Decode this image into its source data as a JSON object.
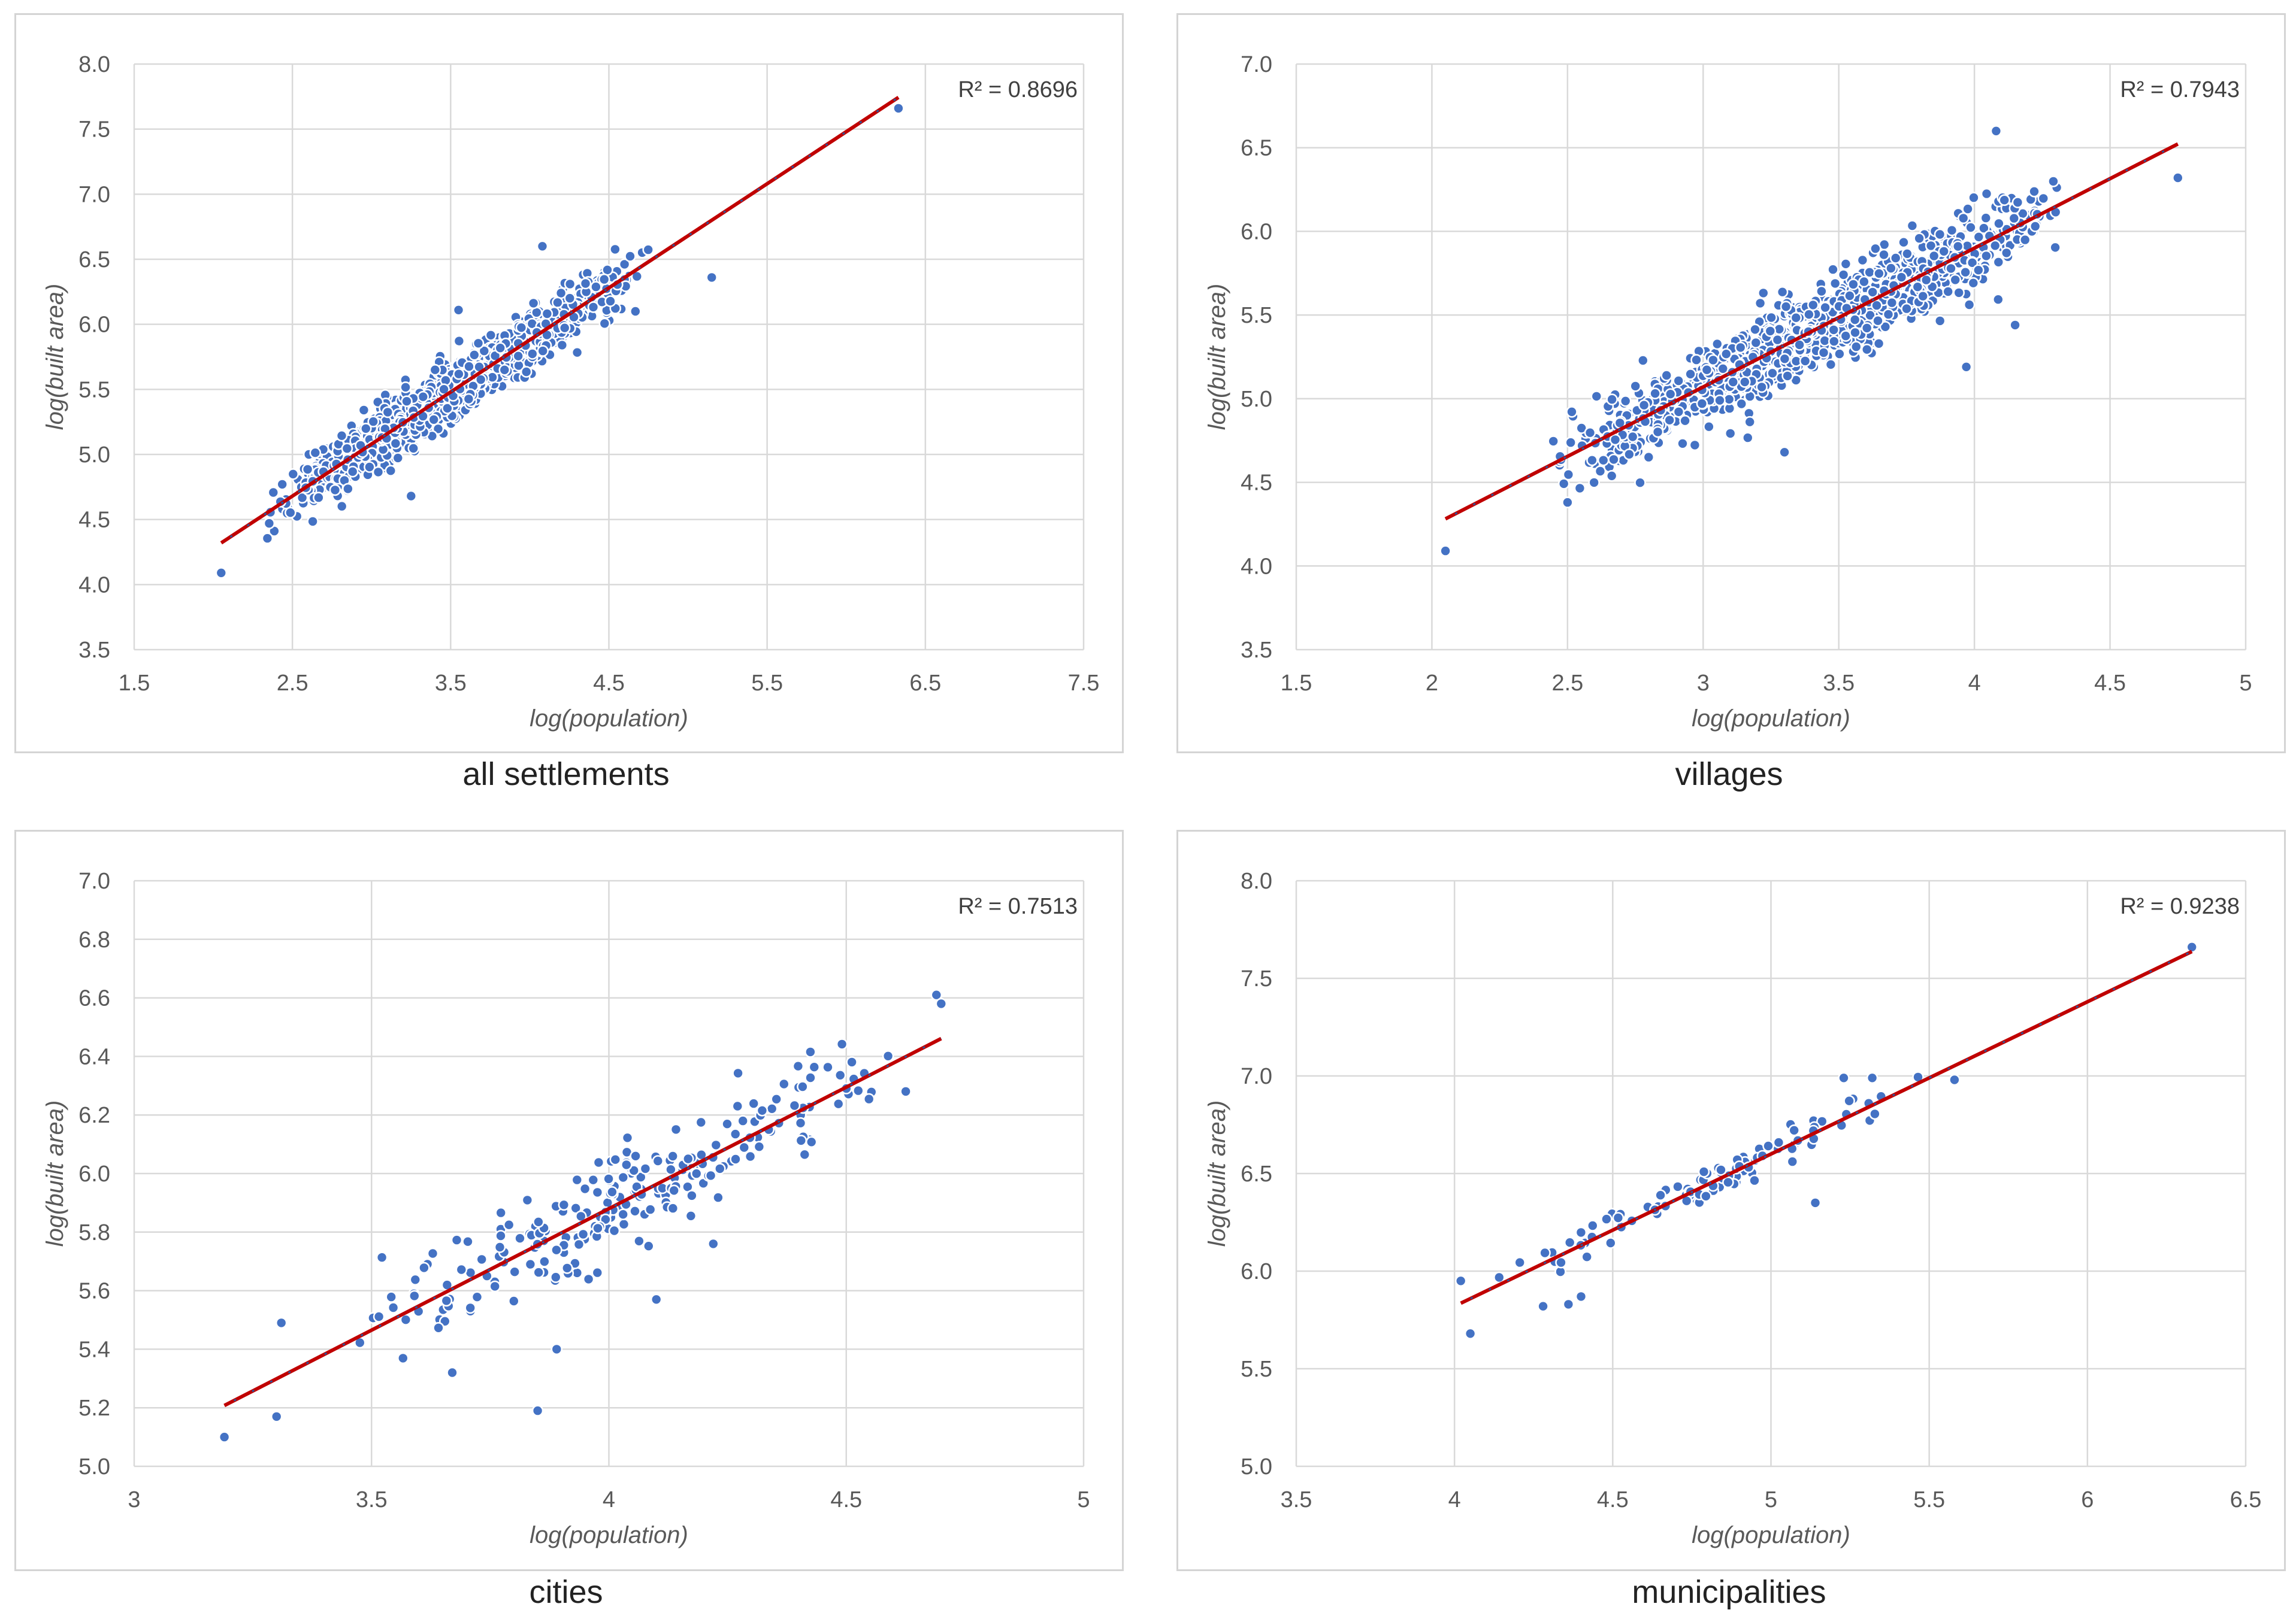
{
  "colors": {
    "point": "#4472C4",
    "trend": "#C00000",
    "trend_dash": "#2F5597",
    "grid": "#D9D9D9",
    "frame": "#D4D4D4"
  },
  "chart_data": [
    {
      "id": "all",
      "type": "scatter",
      "caption": "all settlements",
      "xlabel": "log(population)",
      "ylabel": "log(built area)",
      "r2_label": "R² = 0.8696",
      "xlim": [
        1.5,
        7.5
      ],
      "ylim": [
        3.5,
        8.0
      ],
      "xticks": [
        1.5,
        2.5,
        3.5,
        4.5,
        5.5,
        6.5,
        7.5
      ],
      "xtick_labels": [
        "1.5",
        "2.5",
        "3.5",
        "4.5",
        "5.5",
        "6.5",
        "7.5"
      ],
      "yticks": [
        3.5,
        4.0,
        4.5,
        5.0,
        5.5,
        6.0,
        6.5,
        7.0,
        7.5,
        8.0
      ],
      "ytick_labels": [
        "3.5",
        "4.0",
        "4.5",
        "5.0",
        "5.5",
        "6.0",
        "6.5",
        "7.0",
        "7.5",
        "8.0"
      ],
      "trend": {
        "slope": 0.8,
        "intercept": 2.68,
        "x_start": 2.05,
        "x_end": 6.33
      },
      "anchors": [
        [
          2.05,
          4.09
        ],
        [
          6.33,
          7.66
        ],
        [
          5.15,
          6.36
        ],
        [
          4.08,
          6.6
        ],
        [
          3.25,
          4.68
        ],
        [
          3.55,
          6.11
        ]
      ],
      "n_points": 1200,
      "x_range": [
        2.3,
        4.75
      ],
      "noise": 0.11
    },
    {
      "id": "villages",
      "type": "scatter",
      "caption": "villages",
      "xlabel": "log(population)",
      "ylabel": "log(built area)",
      "r2_label": "R² = 0.7943",
      "xlim": [
        1.5,
        5
      ],
      "ylim": [
        3.5,
        7.0
      ],
      "xticks": [
        1.5,
        2,
        2.5,
        3,
        3.5,
        4,
        4.5,
        5
      ],
      "xtick_labels": [
        "1.5",
        "2",
        "2.5",
        "3",
        "3.5",
        "4",
        "4.5",
        "5"
      ],
      "yticks": [
        3.5,
        4.0,
        4.5,
        5.0,
        5.5,
        6.0,
        6.5,
        7.0
      ],
      "ytick_labels": [
        "3.5",
        "4.0",
        "4.5",
        "5.0",
        "5.5",
        "6.0",
        "6.5",
        "7.0"
      ],
      "trend": {
        "slope": 0.83,
        "intercept": 2.58,
        "x_start": 2.05,
        "x_end": 4.75
      },
      "anchors": [
        [
          2.05,
          4.09
        ],
        [
          4.75,
          6.32
        ],
        [
          4.08,
          6.6
        ],
        [
          3.3,
          4.68
        ],
        [
          3.97,
          5.19
        ],
        [
          4.15,
          5.44
        ],
        [
          2.5,
          4.38
        ]
      ],
      "n_points": 1100,
      "x_range": [
        2.4,
        4.35
      ],
      "noise": 0.12
    },
    {
      "id": "cities",
      "type": "scatter",
      "caption": "cities",
      "xlabel": "log(population)",
      "ylabel": "log(built area)",
      "r2_label": "R² = 0.7513",
      "xlim": [
        3,
        5
      ],
      "ylim": [
        5.0,
        7.0
      ],
      "xticks": [
        3,
        3.5,
        4,
        4.5,
        5
      ],
      "xtick_labels": [
        "3",
        "3.5",
        "4",
        "4.5",
        "5"
      ],
      "yticks": [
        5.0,
        5.2,
        5.4,
        5.6,
        5.8,
        6.0,
        6.2,
        6.4,
        6.6,
        6.8,
        7.0
      ],
      "ytick_labels": [
        "5.0",
        "5.2",
        "5.4",
        "5.6",
        "5.8",
        "6.0",
        "6.2",
        "6.4",
        "6.6",
        "6.8",
        "7.0"
      ],
      "trend": {
        "slope": 0.83,
        "intercept": 2.56,
        "x_start": 3.19,
        "x_end": 4.7
      },
      "anchors": [
        [
          3.19,
          5.1
        ],
        [
          3.3,
          5.17
        ],
        [
          3.31,
          5.49
        ],
        [
          3.85,
          5.19
        ],
        [
          3.89,
          5.4
        ],
        [
          4.69,
          6.61
        ],
        [
          4.7,
          6.58
        ],
        [
          4.1,
          5.57
        ],
        [
          4.22,
          5.76
        ],
        [
          3.67,
          5.32
        ]
      ],
      "n_points": 240,
      "x_range": [
        3.4,
        4.65
      ],
      "noise": 0.09
    },
    {
      "id": "municipalities",
      "type": "scatter",
      "caption": "municipalities",
      "xlabel": "log(population)",
      "ylabel": "log(built area)",
      "r2_label": "R² = 0.9238",
      "xlim": [
        3.5,
        6.5
      ],
      "ylim": [
        5.0,
        8.0
      ],
      "xticks": [
        3.5,
        4,
        4.5,
        5,
        5.5,
        6,
        6.5
      ],
      "xtick_labels": [
        "3.5",
        "4",
        "4.5",
        "5",
        "5.5",
        "6",
        "6.5"
      ],
      "yticks": [
        5.0,
        5.5,
        6.0,
        6.5,
        7.0,
        7.5,
        8.0
      ],
      "ytick_labels": [
        "5.0",
        "5.5",
        "6.0",
        "6.5",
        "7.0",
        "7.5",
        "8.0"
      ],
      "trend": {
        "slope": 0.78,
        "intercept": 2.7,
        "x_start": 4.02,
        "x_end": 6.33
      },
      "anchors": [
        [
          4.02,
          5.95
        ],
        [
          4.05,
          5.68
        ],
        [
          6.33,
          7.66
        ],
        [
          5.14,
          6.35
        ],
        [
          5.58,
          6.98
        ],
        [
          4.28,
          5.82
        ],
        [
          4.36,
          5.83
        ],
        [
          4.4,
          5.87
        ],
        [
          5.23,
          6.99
        ],
        [
          5.32,
          6.99
        ]
      ],
      "n_points": 95,
      "x_range": [
        4.1,
        5.5
      ],
      "noise": 0.05
    }
  ]
}
